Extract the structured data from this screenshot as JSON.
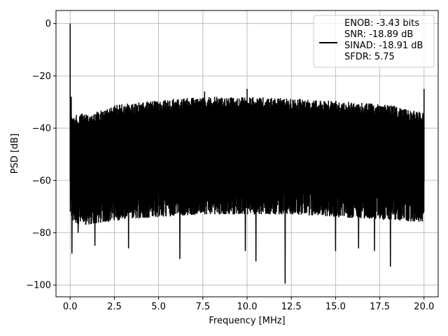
{
  "chart_data": {
    "type": "line",
    "title": "",
    "xlabel": "Frequency [MHz]",
    "ylabel": "PSD [dB]",
    "xlim": [
      -0.8,
      20.8
    ],
    "ylim": [
      -104.5,
      5
    ],
    "xticks": [
      0.0,
      2.5,
      5.0,
      7.5,
      10.0,
      12.5,
      15.0,
      17.5,
      20.0
    ],
    "xtick_labels": [
      "0.0",
      "2.5",
      "5.0",
      "7.5",
      "10.0",
      "12.5",
      "15.0",
      "17.5",
      "20.0"
    ],
    "yticks": [
      0,
      -20,
      -40,
      -60,
      -80,
      -100
    ],
    "ytick_labels": [
      "0",
      "−20",
      "−40",
      "−60",
      "−80",
      "−100"
    ],
    "grid": true,
    "legend_position": "top-right",
    "legend_lines": [
      "ENOB: -3.43 bits",
      "SNR: -18.89 dB",
      "SINAD: -18.91 dB",
      "SFDR: 5.75"
    ],
    "line_color": "#000000",
    "series": [
      {
        "name": "ENOB: -3.43 bits\nSNR: -18.89 dB\nSINAD: -18.91 dB\nSFDR: 5.75",
        "description": "dense noise floor PSD",
        "x_range": [
          0.0,
          20.0
        ],
        "upper_envelope": {
          "x": [
            0.0,
            0.1,
            0.3,
            1.0,
            2.0,
            2.6,
            4.0,
            5.5,
            7.5,
            10.0,
            12.0,
            14.0,
            16.0,
            18.0,
            19.5,
            20.0
          ],
          "y": [
            -34,
            -35,
            -35,
            -34,
            -33,
            -31,
            -30,
            -29,
            -28,
            -28,
            -28.5,
            -29,
            -30,
            -31,
            -33,
            -34
          ]
        },
        "lower_envelope": {
          "x": [
            0.0,
            0.5,
            1.0,
            2.0,
            3.0,
            5.0,
            7.5,
            10.0,
            12.5,
            15.0,
            17.5,
            20.0
          ],
          "y": [
            -72,
            -74,
            -74,
            -73,
            -72,
            -71,
            -70,
            -70,
            -70,
            -71,
            -72,
            -73
          ]
        },
        "peaks": [
          {
            "x": 0.0,
            "y": 0
          },
          {
            "x": 0.06,
            "y": -28
          },
          {
            "x": 7.6,
            "y": -26
          },
          {
            "x": 10.0,
            "y": -25
          },
          {
            "x": 20.0,
            "y": -25
          }
        ],
        "dips": [
          {
            "x": 0.1,
            "y": -88
          },
          {
            "x": 0.45,
            "y": -80
          },
          {
            "x": 1.4,
            "y": -85
          },
          {
            "x": 3.3,
            "y": -86
          },
          {
            "x": 6.2,
            "y": -90
          },
          {
            "x": 9.9,
            "y": -87
          },
          {
            "x": 10.5,
            "y": -91
          },
          {
            "x": 12.15,
            "y": -99.5
          },
          {
            "x": 15.0,
            "y": -87
          },
          {
            "x": 17.2,
            "y": -87
          },
          {
            "x": 18.1,
            "y": -93
          },
          {
            "x": 16.3,
            "y": -86
          }
        ]
      }
    ]
  }
}
